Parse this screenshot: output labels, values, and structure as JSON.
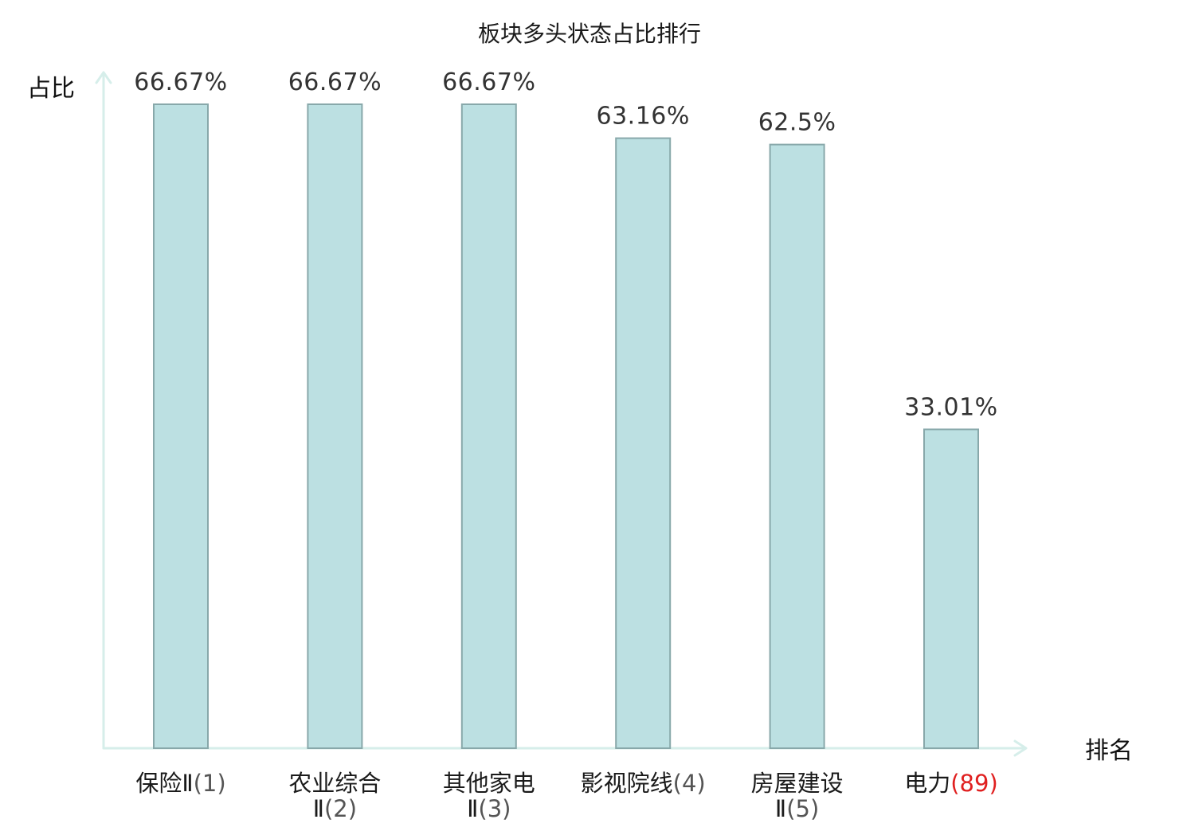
{
  "chart_data": {
    "type": "bar",
    "title": "板块多头状态占比排行",
    "xlabel": "排名",
    "ylabel": "占比",
    "ylim": [
      0,
      70
    ],
    "grid": false,
    "categories": [
      {
        "name_lines": [
          "保险Ⅱ"
        ],
        "rank": "(1)",
        "highlight": false
      },
      {
        "name_lines": [
          "农业综合",
          "Ⅱ"
        ],
        "rank": "(2)",
        "highlight": false
      },
      {
        "name_lines": [
          "其他家电",
          "Ⅱ"
        ],
        "rank": "(3)",
        "highlight": false
      },
      {
        "name_lines": [
          "影视院线"
        ],
        "rank": "(4)",
        "highlight": false
      },
      {
        "name_lines": [
          "房屋建设",
          "Ⅱ"
        ],
        "rank": "(5)",
        "highlight": false
      },
      {
        "name_lines": [
          "电力"
        ],
        "rank": "(89)",
        "highlight": true
      }
    ],
    "values": [
      66.67,
      66.67,
      66.67,
      63.16,
      62.5,
      33.01
    ],
    "value_labels": [
      "66.67%",
      "66.67%",
      "66.67%",
      "63.16%",
      "62.5%",
      "33.01%"
    ],
    "colors": {
      "bar_fill": "#bce0e2",
      "bar_stroke": "#88a8aa",
      "axis": "#d6eeea",
      "highlight_label": "#e02020",
      "text": "#1a1a1a",
      "value_text": "#333333"
    }
  }
}
